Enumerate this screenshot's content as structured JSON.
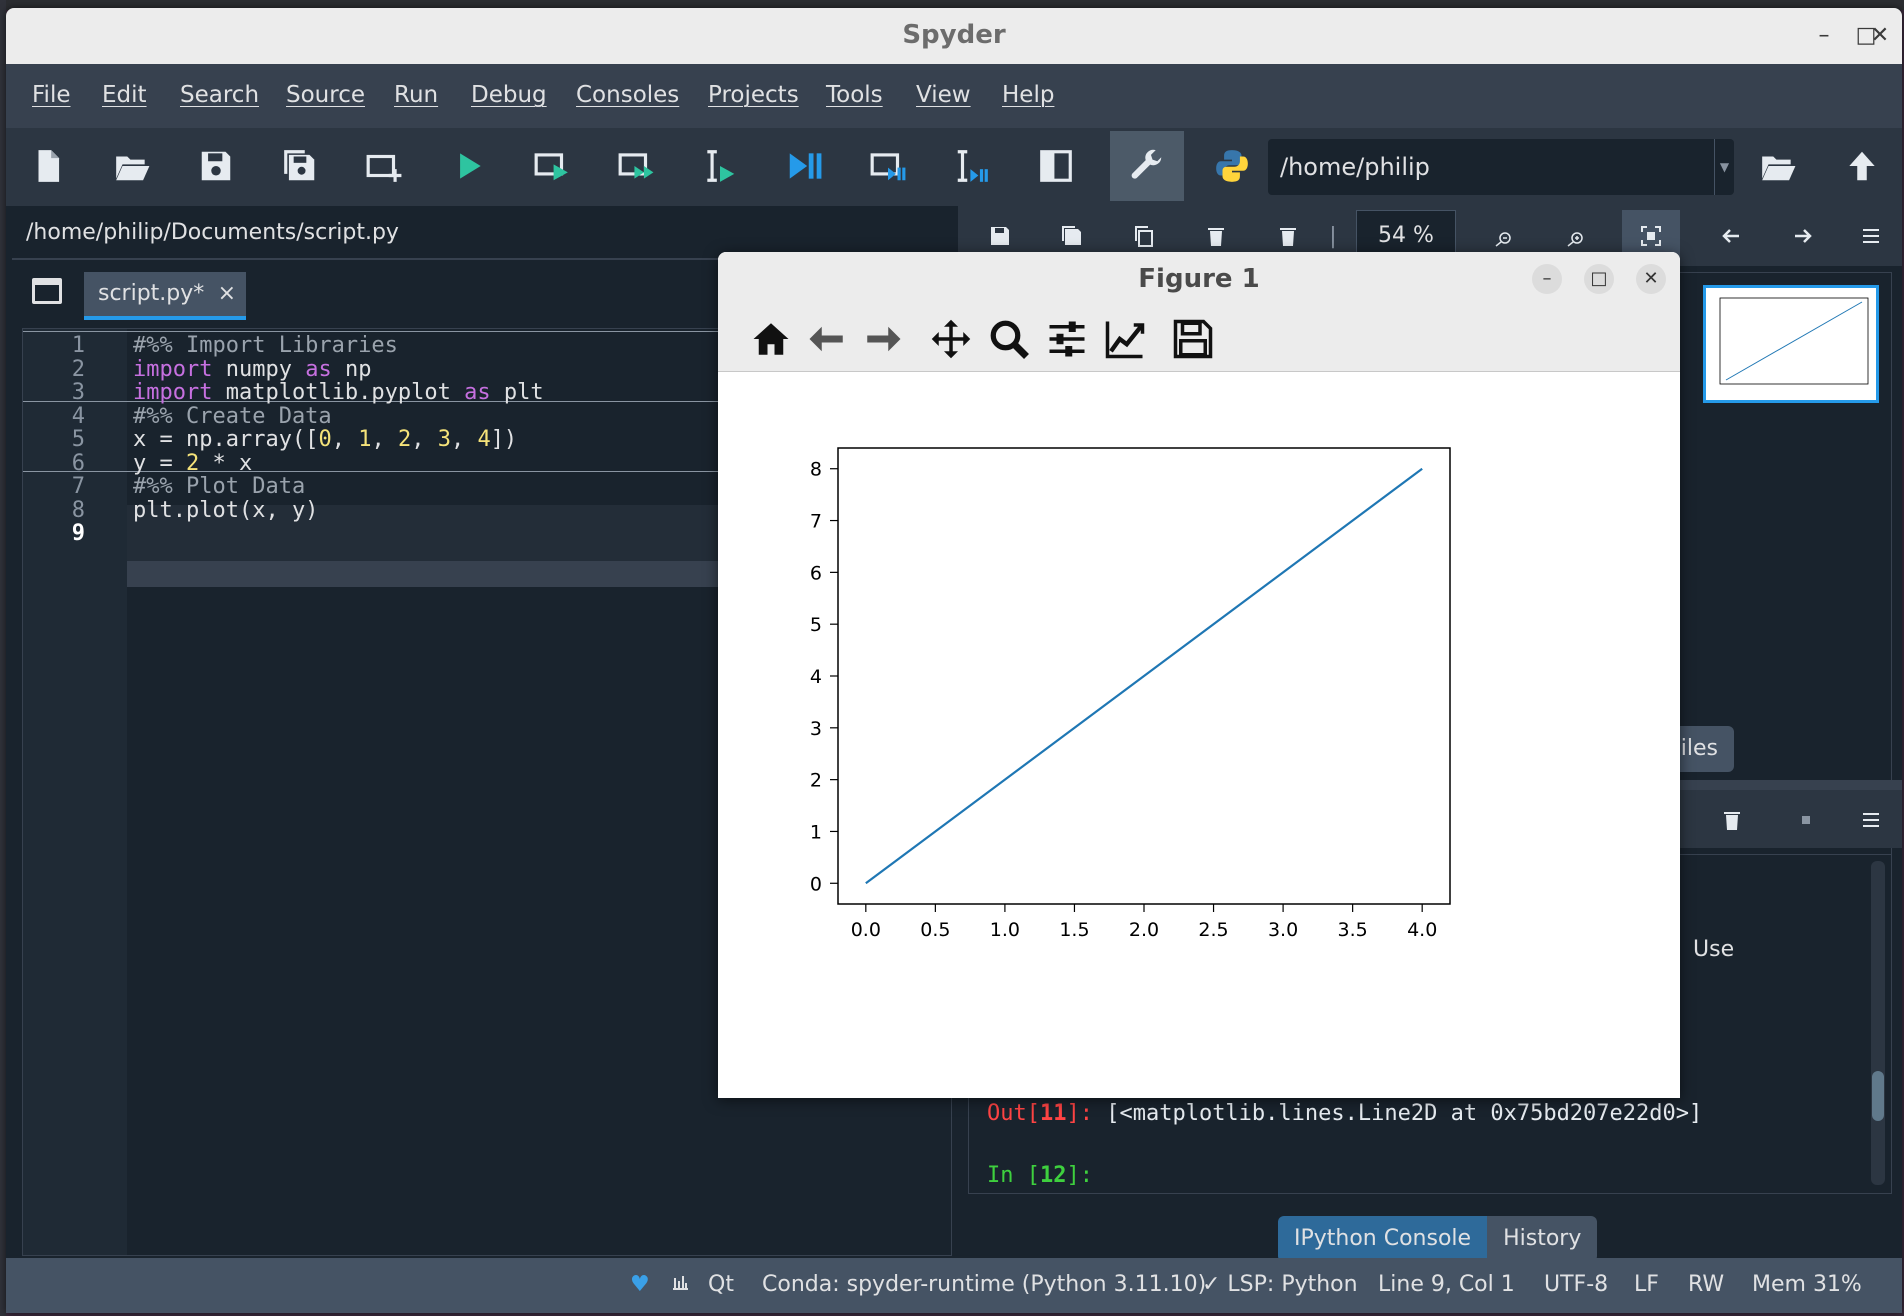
{
  "window": {
    "title": "Spyder",
    "minimize": "–",
    "maximize": "□",
    "close": "✕"
  },
  "menu": [
    "File",
    "Edit",
    "Search",
    "Source",
    "Run",
    "Debug",
    "Consoles",
    "Projects",
    "Tools",
    "View",
    "Help"
  ],
  "toolbar": {
    "working_dir": "/home/philip"
  },
  "editor": {
    "path": "/home/philip/Documents/script.py",
    "tab_label": "script.py*",
    "tab_close": "×",
    "line_numbers": [
      "1",
      "2",
      "3",
      "4",
      "5",
      "6",
      "7",
      "8",
      "9"
    ],
    "current_line": "9",
    "lines": {
      "l1": "#%% Import Libraries",
      "l2_kw": "import",
      "l2_a": " numpy ",
      "l2_kw2": "as",
      "l2_b": " np",
      "l3_kw": "import",
      "l3_a": " matplotlib.pyplot ",
      "l3_kw2": "as",
      "l3_b": " plt",
      "l4": "#%% Create Data",
      "l5_a": "x = np.array([",
      "l5_n0": "0",
      "l5_s1": ", ",
      "l5_n1": "1",
      "l5_s2": ", ",
      "l5_n2": "2",
      "l5_s3": ", ",
      "l5_n3": "3",
      "l5_s4": ", ",
      "l5_n4": "4",
      "l5_b": "])",
      "l6_a": "y = ",
      "l6_n": "2",
      "l6_b": " * x",
      "l7": "#%% Plot Data",
      "l8": "plt.plot(x, y)"
    }
  },
  "plots": {
    "zoom": "54 %",
    "files_tab": "iles"
  },
  "console": {
    "partial_text": "Use",
    "out_prefix": "Out[",
    "out_num": "11",
    "out_suffix": "]:",
    "out_text": " [<matplotlib.lines.Line2D at 0x75bd207e22d0>]",
    "in_prefix": "In [",
    "in_num": "12",
    "in_suffix": "]:"
  },
  "bottom_tabs": {
    "ipython": "IPython Console",
    "history": "History"
  },
  "status": {
    "qt": "Qt",
    "conda": "Conda: spyder-runtime (Python 3.11.10)",
    "lsp": "✓ LSP: Python",
    "cursor": "Line 9, Col 1",
    "encoding": "UTF-8",
    "eol": "LF",
    "mode": "RW",
    "mem": "Mem 31%"
  },
  "figure": {
    "title": "Figure 1",
    "minimize": "–",
    "maximize": "□",
    "close": "✕"
  },
  "chart_data": {
    "type": "line",
    "x": [
      0,
      1,
      2,
      3,
      4
    ],
    "series": [
      {
        "values": [
          0,
          2,
          4,
          6,
          8
        ],
        "color": "#1f77b4"
      }
    ],
    "xlim": [
      -0.2,
      4.2
    ],
    "ylim": [
      -0.4,
      8.4
    ],
    "xticks": [
      "0.0",
      "0.5",
      "1.0",
      "1.5",
      "2.0",
      "2.5",
      "3.0",
      "3.5",
      "4.0"
    ],
    "yticks": [
      "0",
      "1",
      "2",
      "3",
      "4",
      "5",
      "6",
      "7",
      "8"
    ],
    "title": "",
    "xlabel": "",
    "ylabel": "",
    "grid": false
  },
  "colors": {
    "accent": "#259ae9",
    "run_green": "#2ec4a0",
    "python_blue": "#3776ab",
    "python_yellow": "#ffd43b"
  }
}
